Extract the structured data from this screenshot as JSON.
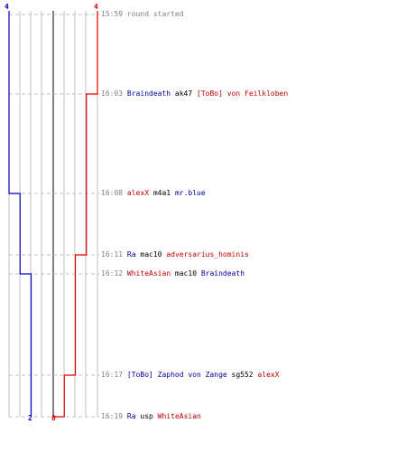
{
  "score": {
    "blue": {
      "start": "4",
      "end": "2"
    },
    "red": {
      "start": "4",
      "end": "0"
    }
  },
  "colors": {
    "blue_team": "#0000c0",
    "red_team": "#e00000",
    "grid": "#c0c0c0",
    "divider": "#808080",
    "time": "#808080"
  },
  "events": [
    {
      "time": "15:59",
      "note": "round started"
    },
    {
      "time": "16:03",
      "killer": "Braindeath",
      "killer_team": "blue",
      "weapon": "ak47",
      "victim": "[ToBo] von Feilkloben",
      "victim_team": "red"
    },
    {
      "time": "16:08",
      "killer": "alexX",
      "killer_team": "red",
      "weapon": "m4a1",
      "victim": "mr.blue",
      "victim_team": "blue"
    },
    {
      "time": "16:11",
      "killer": "Ra",
      "killer_team": "blue",
      "weapon": "mac10",
      "victim": "adversarius_hominis",
      "victim_team": "red"
    },
    {
      "time": "16:12",
      "killer": "WhiteAsian",
      "killer_team": "red",
      "weapon": "mac10",
      "victim": "Braindeath",
      "victim_team": "blue"
    },
    {
      "time": "16:17",
      "killer": "[ToBo] Zaphod von Zange",
      "killer_team": "blue",
      "weapon": "sg552",
      "victim": "alexX",
      "victim_team": "red"
    },
    {
      "time": "16:19",
      "killer": "Ra",
      "killer_team": "blue",
      "weapon": "usp",
      "victim": "WhiteAsian",
      "victim_team": "red"
    }
  ],
  "chart_data": {
    "type": "line",
    "title": "",
    "x": [
      "15:59",
      "16:03",
      "16:08",
      "16:11",
      "16:12",
      "16:17",
      "16:19"
    ],
    "series": [
      {
        "values": [
          4,
          4,
          3,
          3,
          2,
          2,
          2
        ],
        "team": "blue"
      },
      {
        "values": [
          4,
          3,
          3,
          2,
          2,
          1,
          0
        ],
        "team": "red"
      }
    ],
    "ylim": [
      0,
      4
    ],
    "grid": true
  }
}
